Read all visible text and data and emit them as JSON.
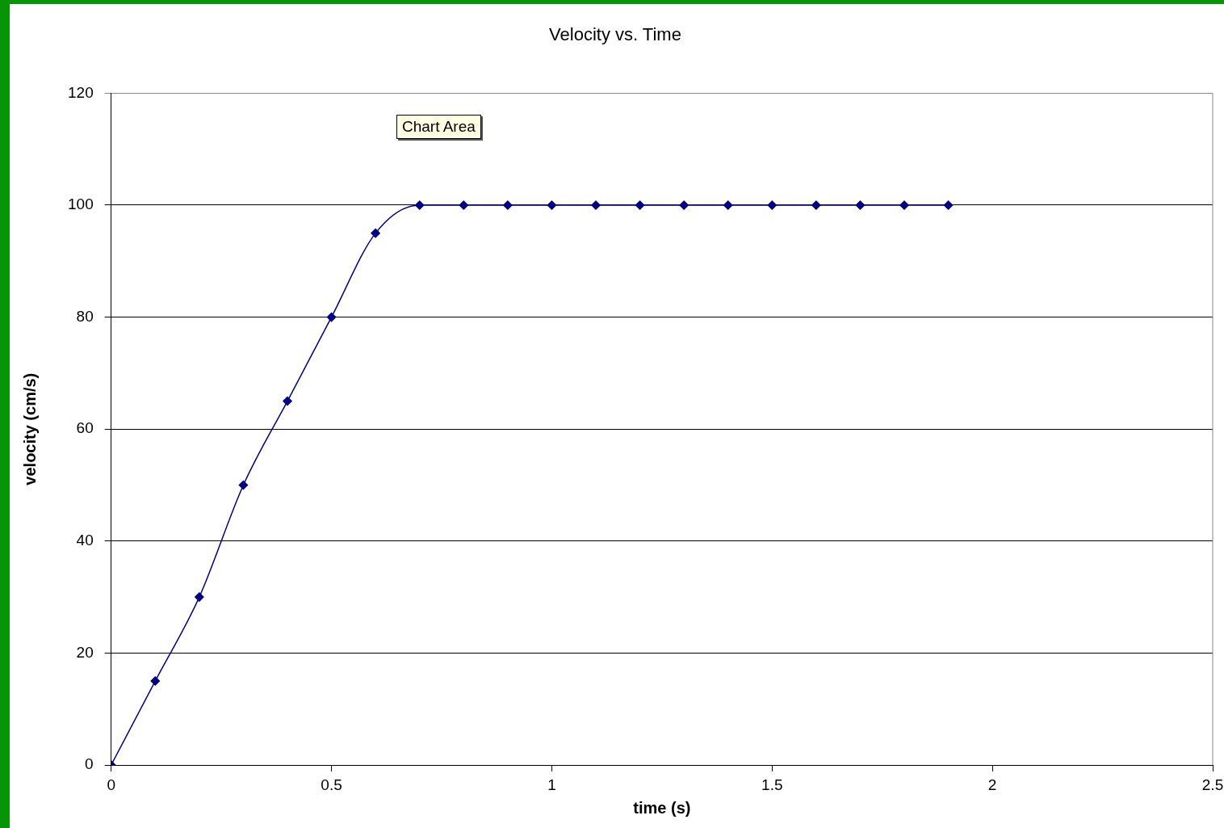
{
  "chart_data": {
    "type": "line",
    "title": "Velocity vs. Time",
    "xlabel": "time (s)",
    "ylabel": "velocity (cm/s)",
    "x": [
      0,
      0.1,
      0.2,
      0.3,
      0.4,
      0.5,
      0.6,
      0.7,
      0.8,
      0.9,
      1,
      1.1,
      1.2,
      1.3,
      1.4,
      1.5,
      1.6,
      1.7,
      1.8,
      1.9
    ],
    "series": [
      {
        "color": "#000080",
        "values": [
          0,
          15,
          30,
          50,
          65,
          80,
          95,
          100,
          100,
          100,
          100,
          100,
          100,
          100,
          100,
          100,
          100,
          100,
          100,
          100
        ]
      }
    ],
    "xlim": [
      0,
      2.5
    ],
    "xticks": [
      0,
      0.5,
      1,
      1.5,
      2,
      2.5
    ],
    "ylim": [
      0,
      120
    ],
    "yticks": [
      0,
      20,
      40,
      60,
      80,
      100,
      120
    ],
    "grid": "y",
    "legend": false,
    "marker": "diamond",
    "line_style": "solid",
    "annotations": [
      "Chart Area"
    ]
  }
}
